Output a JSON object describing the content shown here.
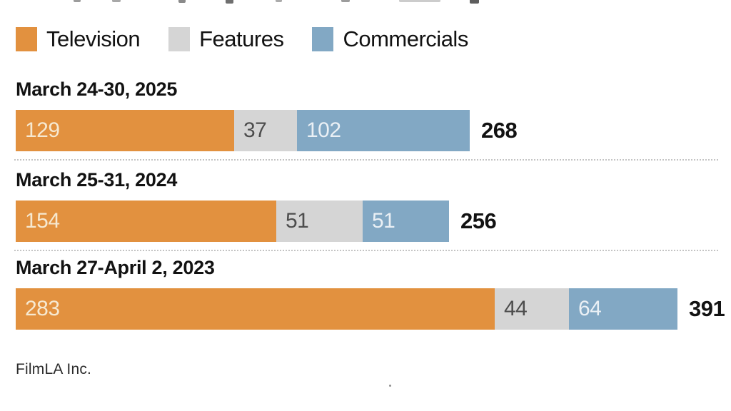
{
  "legend": {
    "items": [
      {
        "label": "Television"
      },
      {
        "label": "Features"
      },
      {
        "label": "Commercials"
      }
    ]
  },
  "chart_data": {
    "type": "bar",
    "orientation": "horizontal",
    "stacked": true,
    "series": [
      "Television",
      "Features",
      "Commercials"
    ],
    "categories": [
      "March 24-30, 2025",
      "March 25-31, 2024",
      "March 27-April 2, 2023"
    ],
    "rows": [
      {
        "label": "March 24-30, 2025",
        "values": [
          129,
          37,
          102
        ],
        "total": 268
      },
      {
        "label": "March 25-31, 2024",
        "values": [
          154,
          51,
          51
        ],
        "total": 256
      },
      {
        "label": "March 27-April 2, 2023",
        "values": [
          283,
          44,
          64
        ],
        "total": 391
      }
    ],
    "value_labels": "inside-segments",
    "total_labels": "right-of-bar",
    "axis": "none",
    "legend_position": "top-left"
  },
  "source": "FilmLA Inc.",
  "colors": {
    "series": [
      "#E2913F",
      "#D5D5D5",
      "#82A8C4"
    ],
    "value_text_on_series": [
      "#F6E9D1",
      "#4D4D4D",
      "#EAF0F5"
    ],
    "text": "#121212",
    "separator": "#C4C4C4",
    "source_text": "#2B2B2B"
  }
}
